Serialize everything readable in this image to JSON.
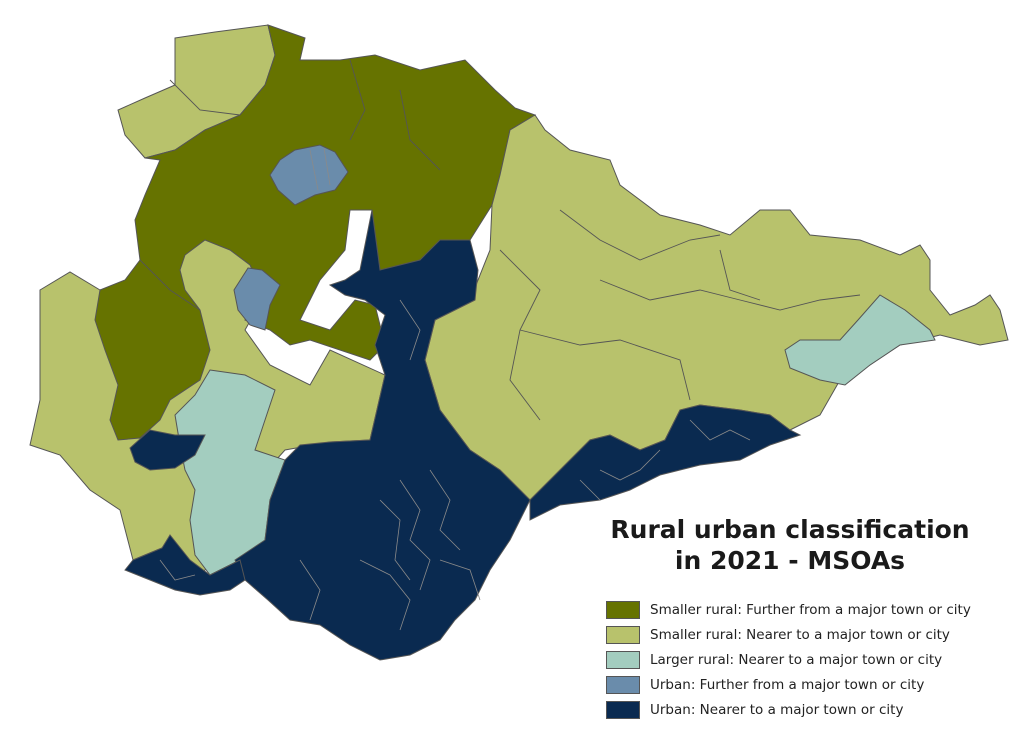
{
  "map": {
    "title_line1": "Rural urban classification",
    "title_line2": "in 2021 - MSOAs"
  },
  "legend": [
    {
      "label": "Smaller rural: Further from a major town or city",
      "color": "#667300"
    },
    {
      "label": "Smaller rural: Nearer to a major town or city",
      "color": "#b8c26c"
    },
    {
      "label": "Larger rural: Nearer to a major town or city",
      "color": "#a3cdbf"
    },
    {
      "label": "Urban: Further from a major town or city",
      "color": "#6a8cab"
    },
    {
      "label": "Urban: Nearer to a major town or city",
      "color": "#0a2a50"
    }
  ],
  "colors": {
    "outline": "#555555",
    "urban_boundary": "#8a8a8a"
  }
}
